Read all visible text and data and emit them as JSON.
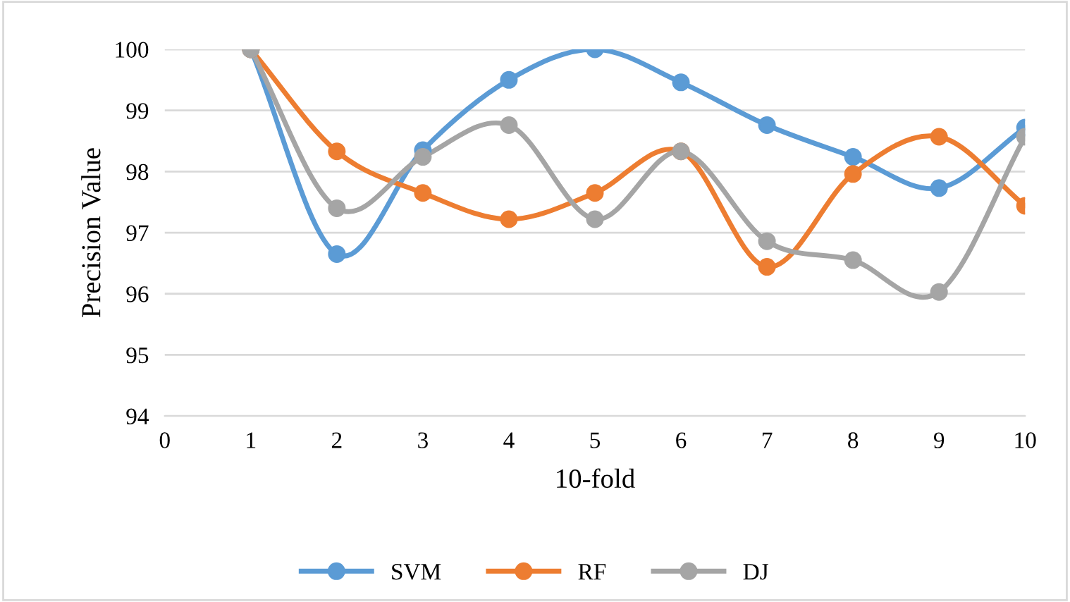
{
  "chart_data": {
    "type": "line",
    "xlabel": "10-fold",
    "ylabel": "Precision Value",
    "x": [
      1,
      2,
      3,
      4,
      5,
      6,
      7,
      8,
      9,
      10
    ],
    "series": [
      {
        "name": "SVM",
        "color": "#5b9bd5",
        "values": [
          100,
          96.65,
          98.35,
          99.5,
          100,
          99.46,
          98.76,
          98.24,
          97.73,
          98.72
        ]
      },
      {
        "name": "RF",
        "color": "#ed7d31",
        "values": [
          100,
          98.33,
          97.65,
          97.22,
          97.65,
          98.33,
          96.44,
          97.96,
          98.57,
          97.44
        ]
      },
      {
        "name": "DJ",
        "color": "#a5a5a5",
        "values": [
          100,
          97.4,
          98.24,
          98.76,
          97.22,
          98.33,
          96.86,
          96.55,
          96.03,
          98.57
        ]
      }
    ],
    "xlim": [
      0,
      10
    ],
    "xticks": [
      0,
      1,
      2,
      3,
      4,
      5,
      6,
      7,
      8,
      9,
      10
    ],
    "ylim": [
      94,
      100
    ],
    "yticks": [
      94,
      95,
      96,
      97,
      98,
      99,
      100
    ],
    "grid": "y",
    "legend": "bottom",
    "marker": "circle",
    "line_style": "solid"
  }
}
